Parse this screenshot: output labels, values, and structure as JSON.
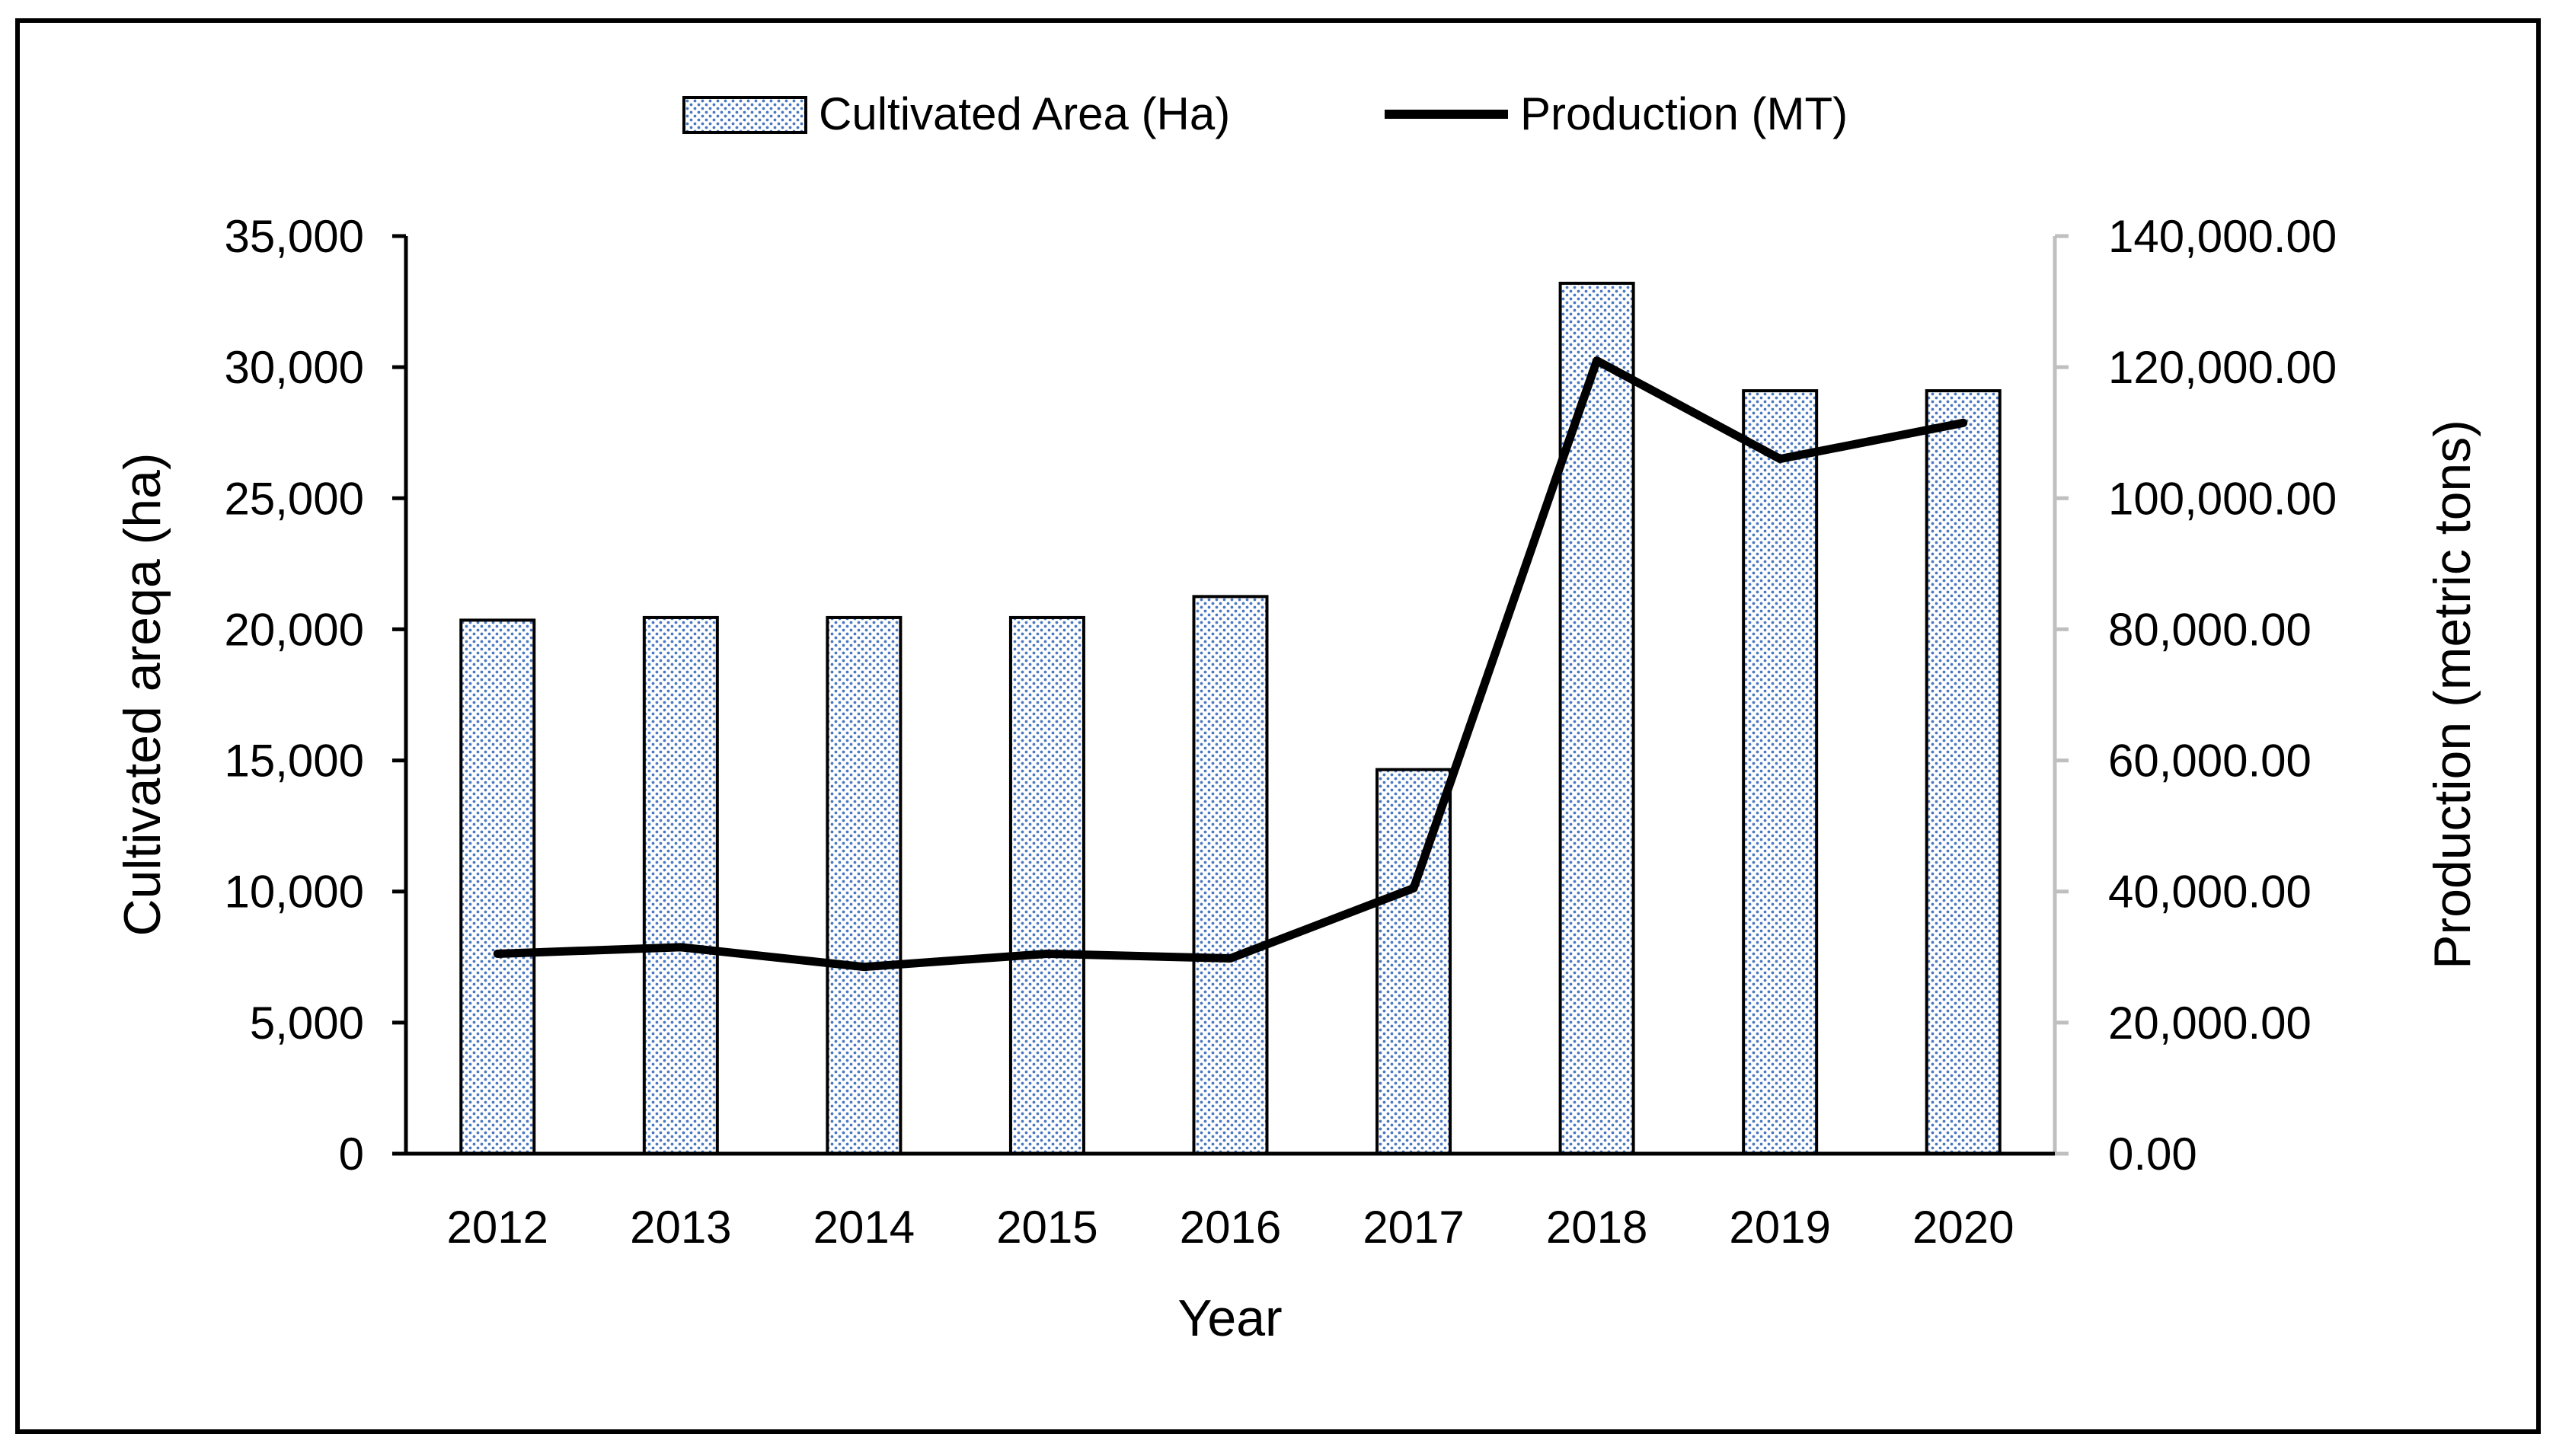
{
  "chart_data": {
    "type": "bar",
    "categories": [
      "2012",
      "2013",
      "2014",
      "2015",
      "2016",
      "2017",
      "2018",
      "2019",
      "2020"
    ],
    "series": [
      {
        "name": "Cultivated Area (Ha)",
        "type": "bar",
        "axis": "left",
        "values": [
          20350,
          20450,
          20450,
          20450,
          21250,
          14650,
          33200,
          29100,
          29100
        ]
      },
      {
        "name": "Production (MT)",
        "type": "line",
        "axis": "right",
        "values": [
          30500,
          31500,
          28500,
          30500,
          29800,
          40500,
          121000,
          106000,
          111500
        ]
      }
    ],
    "xlabel": "Year",
    "ylabel": "Cultivated areqa (ha)",
    "y2label": "Production (metric tons)",
    "ylim": [
      0,
      35000
    ],
    "y2lim": [
      0,
      140000
    ],
    "yticks": [
      "0",
      "5,000",
      "10,000",
      "15,000",
      "20,000",
      "25,000",
      "30,000",
      "35,000"
    ],
    "y2ticks": [
      "0.00",
      "20,000.00",
      "40,000.00",
      "60,000.00",
      "80,000.00",
      "100,000.00",
      "120,000.00",
      "140,000.00"
    ],
    "legend_position": "top-center",
    "grid": false
  },
  "colors": {
    "bar_dot": "#4a78c0",
    "bar_fill": "#ffffff",
    "line": "#000000"
  }
}
